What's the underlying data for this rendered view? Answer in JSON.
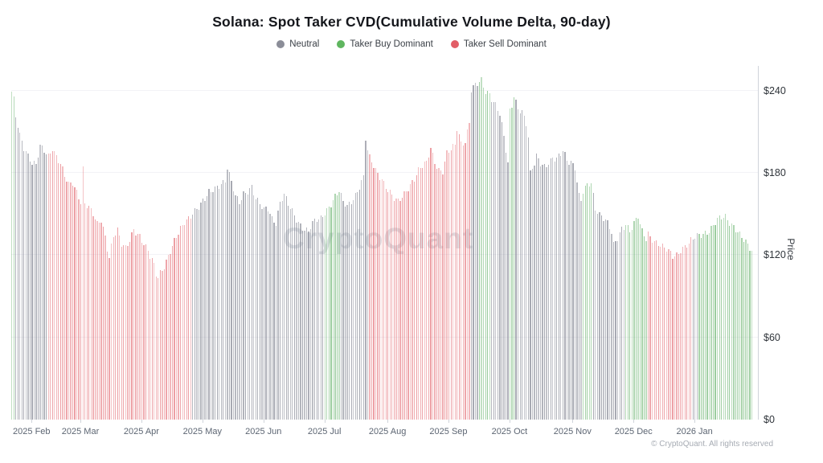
{
  "header": {
    "title": "Solana: Spot Taker CVD(Cumulative Volume Delta, 90-day)"
  },
  "legend": [
    {
      "label": "Neutral",
      "key": "n",
      "color": "#8b8d98"
    },
    {
      "label": "Taker Buy Dominant",
      "key": "g",
      "color": "#5fb65f"
    },
    {
      "label": "Taker Sell Dominant",
      "key": "r",
      "color": "#e25d66"
    }
  ],
  "watermark": "CryptoQuant",
  "footer": {
    "copyright": "© CryptoQuant. All rights reserved"
  },
  "chart_data": {
    "type": "bar",
    "title": "Solana: Spot Taker CVD(Cumulative Volume Delta, 90-day)",
    "ylabel": "Price",
    "ylim": [
      0,
      258
    ],
    "grid": true,
    "legend_position": "top",
    "y_ticks": [
      {
        "value": 0,
        "label": "$0"
      },
      {
        "value": 60,
        "label": "$60"
      },
      {
        "value": 120,
        "label": "$120"
      },
      {
        "value": 180,
        "label": "$180"
      },
      {
        "value": 240,
        "label": "$240"
      }
    ],
    "x_ticks": [
      {
        "label": "2025 Feb",
        "day": 10
      },
      {
        "label": "2025 Mar",
        "day": 34
      },
      {
        "label": "2025 Apr",
        "day": 64
      },
      {
        "label": "2025 May",
        "day": 94
      },
      {
        "label": "2025 Jun",
        "day": 124
      },
      {
        "label": "2025 Jul",
        "day": 154
      },
      {
        "label": "2025 Aug",
        "day": 185
      },
      {
        "label": "2025 Sep",
        "day": 215
      },
      {
        "label": "2025 Oct",
        "day": 245
      },
      {
        "label": "2025 Nov",
        "day": 276
      },
      {
        "label": "2025 Dec",
        "day": 306
      },
      {
        "label": "2026 Jan",
        "day": 336
      }
    ],
    "n_points": 365,
    "bar_rgb": {
      "n": [
        122,
        125,
        138
      ],
      "g": [
        92,
        172,
        97
      ],
      "r": [
        226,
        100,
        108
      ]
    },
    "color_segments": [
      {
        "from": 0,
        "to": 1,
        "color": "g"
      },
      {
        "from": 2,
        "to": 17,
        "color": "n"
      },
      {
        "from": 18,
        "to": 88,
        "color": "r"
      },
      {
        "from": 89,
        "to": 153,
        "color": "n"
      },
      {
        "from": 154,
        "to": 161,
        "color": "g"
      },
      {
        "from": 162,
        "to": 175,
        "color": "n"
      },
      {
        "from": 176,
        "to": 225,
        "color": "r"
      },
      {
        "from": 226,
        "to": 229,
        "color": "n"
      },
      {
        "from": 230,
        "to": 235,
        "color": "g"
      },
      {
        "from": 236,
        "to": 244,
        "color": "n"
      },
      {
        "from": 245,
        "to": 247,
        "color": "g"
      },
      {
        "from": 248,
        "to": 280,
        "color": "n"
      },
      {
        "from": 281,
        "to": 285,
        "color": "g"
      },
      {
        "from": 286,
        "to": 301,
        "color": "n"
      },
      {
        "from": 302,
        "to": 312,
        "color": "g"
      },
      {
        "from": 313,
        "to": 334,
        "color": "r"
      },
      {
        "from": 335,
        "to": 337,
        "color": "n"
      },
      {
        "from": 338,
        "to": 364,
        "color": "g"
      }
    ],
    "price_points": [
      [
        0,
        238
      ],
      [
        1,
        232
      ],
      [
        2,
        220
      ],
      [
        4,
        207
      ],
      [
        6,
        199
      ],
      [
        8,
        194
      ],
      [
        10,
        188
      ],
      [
        12,
        186
      ],
      [
        14,
        198
      ],
      [
        16,
        195
      ],
      [
        18,
        192
      ],
      [
        20,
        199
      ],
      [
        22,
        193
      ],
      [
        24,
        187
      ],
      [
        26,
        177
      ],
      [
        28,
        170
      ],
      [
        30,
        172
      ],
      [
        32,
        166
      ],
      [
        34,
        160
      ],
      [
        35,
        184
      ],
      [
        36,
        159
      ],
      [
        38,
        155
      ],
      [
        40,
        149
      ],
      [
        42,
        141
      ],
      [
        44,
        145
      ],
      [
        46,
        134
      ],
      [
        47,
        126
      ],
      [
        48,
        120
      ],
      [
        50,
        135
      ],
      [
        52,
        138
      ],
      [
        54,
        127
      ],
      [
        56,
        124
      ],
      [
        58,
        131
      ],
      [
        60,
        140
      ],
      [
        61,
        138
      ],
      [
        63,
        135
      ],
      [
        65,
        128
      ],
      [
        67,
        122
      ],
      [
        68,
        118
      ],
      [
        70,
        112
      ],
      [
        71,
        106
      ],
      [
        72,
        104
      ],
      [
        73,
        108
      ],
      [
        75,
        113
      ],
      [
        77,
        120
      ],
      [
        79,
        126
      ],
      [
        81,
        132
      ],
      [
        83,
        138
      ],
      [
        85,
        144
      ],
      [
        87,
        148
      ],
      [
        89,
        152
      ],
      [
        91,
        154
      ],
      [
        93,
        156
      ],
      [
        95,
        160
      ],
      [
        97,
        165
      ],
      [
        100,
        170
      ],
      [
        103,
        173
      ],
      [
        105,
        174
      ],
      [
        106,
        183
      ],
      [
        108,
        172
      ],
      [
        110,
        162
      ],
      [
        112,
        159
      ],
      [
        114,
        166
      ],
      [
        116,
        168
      ],
      [
        118,
        170
      ],
      [
        120,
        160
      ],
      [
        122,
        156
      ],
      [
        124,
        153
      ],
      [
        126,
        155
      ],
      [
        128,
        148
      ],
      [
        130,
        144
      ],
      [
        132,
        158
      ],
      [
        134,
        163
      ],
      [
        136,
        156
      ],
      [
        138,
        152
      ],
      [
        140,
        147
      ],
      [
        142,
        143
      ],
      [
        144,
        139
      ],
      [
        146,
        137
      ],
      [
        148,
        142
      ],
      [
        150,
        145
      ],
      [
        152,
        147
      ],
      [
        154,
        152
      ],
      [
        156,
        156
      ],
      [
        158,
        160
      ],
      [
        160,
        164
      ],
      [
        161,
        166
      ],
      [
        163,
        158
      ],
      [
        165,
        156
      ],
      [
        167,
        160
      ],
      [
        169,
        165
      ],
      [
        171,
        170
      ],
      [
        173,
        176
      ],
      [
        174,
        204
      ],
      [
        175,
        195
      ],
      [
        176,
        190
      ],
      [
        178,
        185
      ],
      [
        180,
        180
      ],
      [
        182,
        177
      ],
      [
        184,
        170
      ],
      [
        186,
        165
      ],
      [
        188,
        160
      ],
      [
        190,
        158
      ],
      [
        192,
        163
      ],
      [
        194,
        168
      ],
      [
        196,
        172
      ],
      [
        198,
        176
      ],
      [
        200,
        181
      ],
      [
        202,
        184
      ],
      [
        204,
        187
      ],
      [
        206,
        199
      ],
      [
        208,
        189
      ],
      [
        210,
        183
      ],
      [
        212,
        181
      ],
      [
        214,
        193
      ],
      [
        216,
        196
      ],
      [
        218,
        200
      ],
      [
        219,
        213
      ],
      [
        221,
        203
      ],
      [
        223,
        204
      ],
      [
        225,
        217
      ],
      [
        226,
        240
      ],
      [
        228,
        243
      ],
      [
        230,
        245
      ],
      [
        231,
        247
      ],
      [
        233,
        240
      ],
      [
        235,
        239
      ],
      [
        236,
        235
      ],
      [
        238,
        230
      ],
      [
        240,
        222
      ],
      [
        242,
        205
      ],
      [
        244,
        186
      ],
      [
        245,
        225
      ],
      [
        246,
        230
      ],
      [
        247,
        237
      ],
      [
        249,
        228
      ],
      [
        251,
        225
      ],
      [
        253,
        215
      ],
      [
        254,
        205
      ],
      [
        255,
        178
      ],
      [
        257,
        186
      ],
      [
        258,
        192
      ],
      [
        260,
        188
      ],
      [
        262,
        186
      ],
      [
        264,
        188
      ],
      [
        266,
        190
      ],
      [
        268,
        189
      ],
      [
        270,
        193
      ],
      [
        271,
        196
      ],
      [
        273,
        190
      ],
      [
        275,
        189
      ],
      [
        277,
        185
      ],
      [
        279,
        163
      ],
      [
        280,
        159
      ],
      [
        281,
        165
      ],
      [
        283,
        170
      ],
      [
        285,
        172
      ],
      [
        287,
        155
      ],
      [
        289,
        151
      ],
      [
        291,
        148
      ],
      [
        293,
        143
      ],
      [
        295,
        135
      ],
      [
        296,
        126
      ],
      [
        298,
        132
      ],
      [
        300,
        140
      ],
      [
        302,
        144
      ],
      [
        304,
        138
      ],
      [
        306,
        143
      ],
      [
        308,
        147
      ],
      [
        309,
        141
      ],
      [
        310,
        136
      ],
      [
        312,
        132
      ],
      [
        313,
        136
      ],
      [
        315,
        133
      ],
      [
        317,
        130
      ],
      [
        319,
        127
      ],
      [
        321,
        124
      ],
      [
        323,
        122
      ],
      [
        325,
        119
      ],
      [
        327,
        121
      ],
      [
        329,
        125
      ],
      [
        331,
        127
      ],
      [
        333,
        128
      ],
      [
        335,
        131
      ],
      [
        337,
        133
      ],
      [
        339,
        135
      ],
      [
        341,
        137
      ],
      [
        343,
        139
      ],
      [
        345,
        142
      ],
      [
        347,
        145
      ],
      [
        349,
        146
      ],
      [
        351,
        147
      ],
      [
        353,
        144
      ],
      [
        355,
        142
      ],
      [
        357,
        138
      ],
      [
        359,
        133
      ],
      [
        361,
        128
      ],
      [
        363,
        124
      ],
      [
        364,
        122
      ]
    ]
  }
}
